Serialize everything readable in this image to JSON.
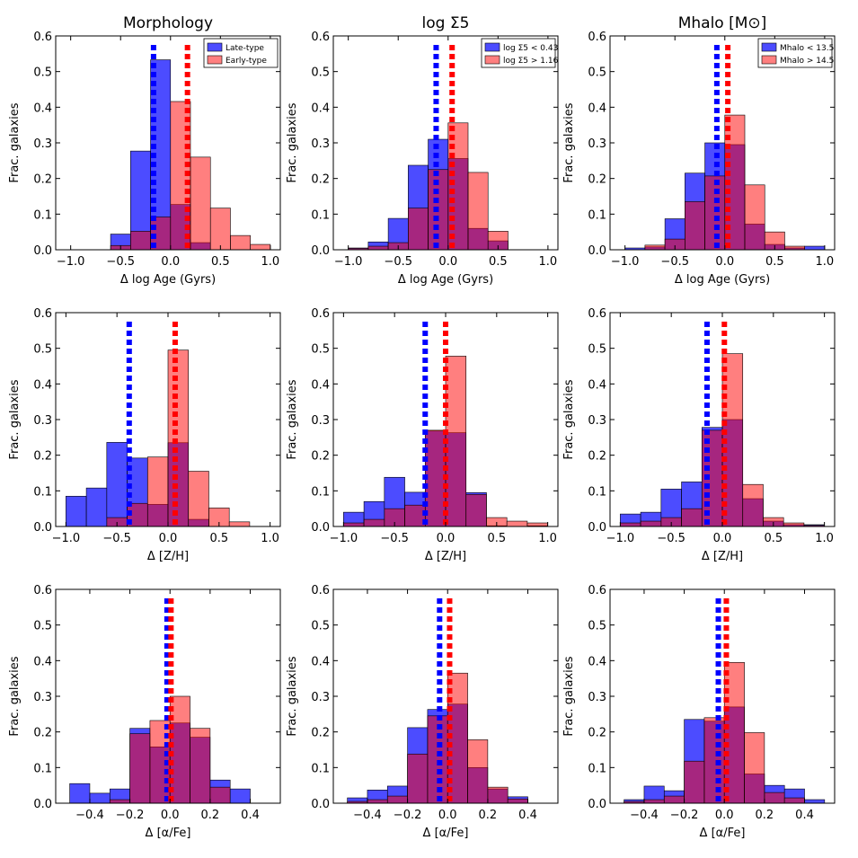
{
  "chart_data": {
    "type": "bar",
    "layout": "3x3 grid of histograms",
    "ylabel": "Frac. galaxies",
    "yticks": [
      "0.0",
      "0.1",
      "0.2",
      "0.3",
      "0.4",
      "0.5",
      "0.6"
    ],
    "ylim": [
      0,
      0.6
    ],
    "colors": {
      "group1": "#0000ff",
      "group2": "#ff0000",
      "overlap": "#800060"
    },
    "column_titles": [
      "Morphology",
      "log Σ5",
      "Mhalo [M⊙]"
    ],
    "rows": [
      {
        "xlabel": "Δ log Age (Gyrs)",
        "xlim": [
          -1.15,
          1.1
        ],
        "xticks": [
          "−1.0",
          "−0.5",
          "0.0",
          "0.5",
          "1.0"
        ],
        "xtick_values": [
          -1.0,
          -0.5,
          0.0,
          0.5,
          1.0
        ]
      },
      {
        "xlabel": "Δ [Z/H]",
        "xlim": [
          -1.1,
          1.1
        ],
        "xticks": [
          "−1.0",
          "−0.5",
          "0.0",
          "0.5",
          "1.0"
        ],
        "xtick_values": [
          -1.0,
          -0.5,
          0.0,
          0.5,
          1.0
        ]
      },
      {
        "xlabel": "Δ [α/Fe]",
        "xlim": [
          -0.57,
          0.55
        ],
        "xticks": [
          "−0.4",
          "−0.2",
          "0.0",
          "0.2",
          "0.4"
        ],
        "xtick_values": [
          -0.4,
          -0.2,
          0.0,
          0.2,
          0.4
        ]
      }
    ],
    "legends": [
      {
        "blue": "Late-type",
        "red": "Early-type"
      },
      {
        "blue": "log Σ5 < 0.43",
        "red": "log Σ5 > 1.16"
      },
      {
        "blue": "Mhalo < 13.5",
        "red": "Mhalo > 14.5"
      }
    ],
    "panels": [
      {
        "row": 0,
        "col": 0,
        "blue_edges": [
          -0.6,
          -0.4,
          -0.2,
          0.0,
          0.2,
          0.4,
          0.6
        ],
        "blue": [
          0.044,
          0.277,
          0.533,
          0.127,
          0.02,
          0.0
        ],
        "red_edges": [
          -0.6,
          -0.4,
          -0.2,
          0.0,
          0.2,
          0.4,
          0.6,
          0.8,
          1.0
        ],
        "red": [
          0.012,
          0.052,
          0.092,
          0.416,
          0.26,
          0.117,
          0.04,
          0.015
        ],
        "blue_median": -0.17,
        "red_median": 0.17
      },
      {
        "row": 0,
        "col": 1,
        "blue_edges": [
          -1.0,
          -0.8,
          -0.6,
          -0.4,
          -0.2,
          0.0,
          0.2,
          0.4,
          0.6,
          0.8
        ],
        "blue": [
          0.005,
          0.022,
          0.088,
          0.237,
          0.31,
          0.256,
          0.06,
          0.025,
          0.0
        ],
        "red_edges": [
          -1.0,
          -0.8,
          -0.6,
          -0.4,
          -0.2,
          0.0,
          0.2,
          0.4,
          0.6
        ],
        "red": [
          0.004,
          0.01,
          0.02,
          0.117,
          0.225,
          0.356,
          0.217,
          0.052
        ],
        "blue_median": -0.12,
        "red_median": 0.04
      },
      {
        "row": 0,
        "col": 2,
        "blue_edges": [
          -1.0,
          -0.8,
          -0.6,
          -0.4,
          -0.2,
          0.0,
          0.2,
          0.4,
          0.6,
          0.8,
          1.0
        ],
        "blue": [
          0.005,
          0.008,
          0.087,
          0.215,
          0.3,
          0.295,
          0.072,
          0.015,
          0.005,
          0.01
        ],
        "red_edges": [
          -0.8,
          -0.6,
          -0.4,
          -0.2,
          0.0,
          0.2,
          0.4,
          0.6,
          0.8
        ],
        "red": [
          0.013,
          0.03,
          0.135,
          0.207,
          0.378,
          0.182,
          0.05,
          0.01
        ],
        "blue_median": -0.08,
        "red_median": 0.03
      },
      {
        "row": 1,
        "col": 0,
        "blue_edges": [
          -1.0,
          -0.8,
          -0.6,
          -0.4,
          -0.2,
          0.0,
          0.2,
          0.4,
          0.6,
          0.8,
          1.0
        ],
        "blue": [
          0.085,
          0.108,
          0.236,
          0.192,
          0.062,
          0.235,
          0.02,
          0.0,
          0.0,
          0.0
        ],
        "red_edges": [
          -0.6,
          -0.4,
          -0.2,
          0.0,
          0.2,
          0.4,
          0.6,
          0.8
        ],
        "red": [
          0.025,
          0.065,
          0.195,
          0.495,
          0.155,
          0.052,
          0.013
        ],
        "blue_median": -0.38,
        "red_median": 0.07
      },
      {
        "row": 1,
        "col": 1,
        "blue_edges": [
          -1.0,
          -0.8,
          -0.6,
          -0.4,
          -0.2,
          0.0,
          0.2,
          0.4,
          0.6,
          0.8,
          1.0
        ],
        "blue": [
          0.04,
          0.07,
          0.138,
          0.096,
          0.268,
          0.263,
          0.095,
          0.002,
          0.0,
          0.002
        ],
        "red_edges": [
          -1.0,
          -0.8,
          -0.6,
          -0.4,
          -0.2,
          0.0,
          0.2,
          0.4,
          0.6,
          0.8,
          1.0
        ],
        "red": [
          0.01,
          0.02,
          0.05,
          0.06,
          0.27,
          0.478,
          0.09,
          0.025,
          0.015,
          0.01
        ],
        "blue_median": -0.2,
        "red_median": 0.0
      },
      {
        "row": 1,
        "col": 2,
        "blue_edges": [
          -1.0,
          -0.8,
          -0.6,
          -0.4,
          -0.2,
          0.0,
          0.2,
          0.4,
          0.6,
          0.8,
          1.0
        ],
        "blue": [
          0.035,
          0.04,
          0.105,
          0.125,
          0.278,
          0.3,
          0.078,
          0.015,
          0.005,
          0.005
        ],
        "red_edges": [
          -1.0,
          -0.8,
          -0.6,
          -0.4,
          -0.2,
          0.0,
          0.2,
          0.4,
          0.6,
          0.8,
          1.0
        ],
        "red": [
          0.01,
          0.015,
          0.025,
          0.05,
          0.27,
          0.485,
          0.118,
          0.025,
          0.01,
          0.003
        ],
        "blue_median": -0.15,
        "red_median": 0.02
      },
      {
        "row": 2,
        "col": 0,
        "blue_edges": [
          -0.5,
          -0.4,
          -0.3,
          -0.2,
          -0.1,
          0.0,
          0.1,
          0.2,
          0.3,
          0.4
        ],
        "blue": [
          0.055,
          0.028,
          0.04,
          0.21,
          0.158,
          0.225,
          0.185,
          0.065,
          0.04
        ],
        "red_edges": [
          -0.3,
          -0.2,
          -0.1,
          0.0,
          0.1,
          0.2,
          0.3
        ],
        "red": [
          0.01,
          0.195,
          0.232,
          0.3,
          0.21,
          0.045
        ],
        "blue_median": -0.015,
        "red_median": 0.005
      },
      {
        "row": 2,
        "col": 1,
        "blue_edges": [
          -0.5,
          -0.4,
          -0.3,
          -0.2,
          -0.1,
          0.0,
          0.1,
          0.2,
          0.3,
          0.4
        ],
        "blue": [
          0.015,
          0.037,
          0.048,
          0.212,
          0.263,
          0.278,
          0.1,
          0.04,
          0.018
        ],
        "red_edges": [
          -0.5,
          -0.4,
          -0.3,
          -0.2,
          -0.1,
          0.0,
          0.1,
          0.2,
          0.3,
          0.4
        ],
        "red": [
          0.005,
          0.01,
          0.02,
          0.138,
          0.245,
          0.365,
          0.178,
          0.045,
          0.012
        ],
        "blue_median": -0.04,
        "red_median": 0.01
      },
      {
        "row": 2,
        "col": 2,
        "blue_edges": [
          -0.5,
          -0.4,
          -0.3,
          -0.2,
          -0.1,
          0.0,
          0.1,
          0.2,
          0.3,
          0.4,
          0.5
        ],
        "blue": [
          0.01,
          0.048,
          0.035,
          0.235,
          0.23,
          0.27,
          0.082,
          0.05,
          0.04,
          0.01
        ],
        "red_edges": [
          -0.5,
          -0.4,
          -0.3,
          -0.2,
          -0.1,
          0.0,
          0.1,
          0.2,
          0.3,
          0.4
        ],
        "red": [
          0.005,
          0.01,
          0.02,
          0.118,
          0.24,
          0.395,
          0.198,
          0.03,
          0.015
        ],
        "blue_median": -0.03,
        "red_median": 0.01
      }
    ]
  }
}
